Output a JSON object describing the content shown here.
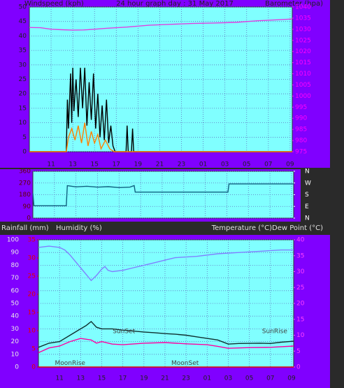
{
  "chart_data": [
    {
      "type": "line",
      "title": "24 hour graph day : 31 May 2017",
      "y_label": "Windspeed (kph)",
      "y2_label": "Barometer (hpa)",
      "xlim": [
        9,
        33.2
      ],
      "xticks": [
        11,
        13,
        15,
        17,
        19,
        21,
        23,
        {
          "value": 25,
          "label": "01"
        },
        {
          "value": 27,
          "label": "03"
        },
        {
          "value": 29,
          "label": "05"
        },
        {
          "value": 31,
          "label": "07"
        },
        {
          "value": 33,
          "label": "09"
        }
      ],
      "ylim": [
        0,
        50
      ],
      "yticks": [
        0,
        5,
        10,
        15,
        20,
        25,
        30,
        35,
        40,
        45,
        50
      ],
      "y2lim": [
        975,
        1040
      ],
      "y2ticks": [
        975,
        980,
        985,
        990,
        995,
        1000,
        1005,
        1010,
        1015,
        1020,
        1025,
        1030,
        1035,
        1040
      ],
      "grid": true,
      "series": [
        {
          "name": "Barometer",
          "color": "#e040e0",
          "axis": "y2",
          "x": [
            9,
            10,
            11,
            12,
            13,
            14,
            15,
            16,
            18,
            20,
            22,
            24,
            26,
            28,
            30,
            32,
            33.2
          ],
          "values": [
            1030.8,
            1030.7,
            1030,
            1029.8,
            1029.6,
            1029.7,
            1030,
            1030.4,
            1031,
            1031.8,
            1032.2,
            1032.6,
            1032.8,
            1033.1,
            1033.8,
            1034.3,
            1034.6
          ]
        },
        {
          "name": "Wind gust",
          "color": "#000000",
          "x": [
            9,
            12.4,
            12.5,
            12.6,
            12.8,
            12.9,
            13,
            13.1,
            13.3,
            13.5,
            13.7,
            13.9,
            14.1,
            14.3,
            14.5,
            14.7,
            14.9,
            15.1,
            15.3,
            15.5,
            15.7,
            15.9,
            16.1,
            16.3,
            16.5,
            16.7,
            16.9,
            17.9,
            18,
            18.1,
            18.4,
            18.5,
            18.6,
            33.2
          ],
          "values": [
            0,
            0,
            18,
            8,
            27,
            10,
            29,
            14,
            25,
            12,
            29,
            15,
            29,
            9,
            24,
            11,
            27,
            8,
            20,
            5,
            16,
            4,
            18,
            3,
            9,
            2,
            0,
            0,
            9,
            0,
            0,
            8,
            0,
            0
          ]
        },
        {
          "name": "Wind average",
          "color": "#ff8000",
          "x": [
            9,
            12.4,
            12.6,
            12.9,
            13.2,
            13.5,
            13.8,
            14.1,
            14.4,
            14.7,
            15,
            15.3,
            15.6,
            16,
            16.4,
            16.8,
            33.2
          ],
          "values": [
            0,
            0,
            5,
            8,
            4,
            9,
            3,
            10,
            2,
            7,
            3,
            6,
            1,
            4,
            1,
            0,
            0
          ]
        }
      ]
    },
    {
      "type": "line",
      "xlim": [
        9,
        33.2
      ],
      "ylim": [
        0,
        360
      ],
      "yticks": [
        0,
        90,
        180,
        270,
        360
      ],
      "y2lim": [
        0,
        360
      ],
      "y2ticks": [
        {
          "value": 0,
          "label": "N"
        },
        {
          "value": 90,
          "label": "E"
        },
        {
          "value": 180,
          "label": "S"
        },
        {
          "value": 270,
          "label": "W"
        },
        {
          "value": 360,
          "label": "N"
        }
      ],
      "grid": true,
      "series": [
        {
          "name": "Wind direction",
          "color": "#106080",
          "x": [
            9,
            9.1,
            12.1,
            12.2,
            13,
            14,
            15,
            16,
            17,
            18,
            18.4,
            18.5,
            27.1,
            27.2,
            33.2
          ],
          "values": [
            190,
            95,
            95,
            250,
            240,
            245,
            238,
            242,
            235,
            238,
            250,
            200,
            200,
            263,
            263
          ]
        }
      ]
    },
    {
      "type": "line",
      "y_label": "Humidity (%)",
      "y3_label": "Rainfall (mm)",
      "y2_label": "Temperature (°C)Dew Point (°C)",
      "xlim": [
        9,
        33.2
      ],
      "xticks": [
        11,
        13,
        15,
        17,
        19,
        21,
        23,
        {
          "value": 25,
          "label": "01"
        },
        {
          "value": 27,
          "label": "03"
        },
        {
          "value": 29,
          "label": "05"
        },
        {
          "value": 31,
          "label": "07"
        },
        {
          "value": 33,
          "label": "09"
        }
      ],
      "ylim": [
        0,
        100
      ],
      "yticks": [
        0,
        10,
        20,
        30,
        40,
        50,
        60,
        70,
        80,
        90,
        100
      ],
      "y3lim": [
        0,
        35
      ],
      "y3ticks": [
        0,
        5,
        10,
        15,
        20,
        25,
        30,
        35
      ],
      "y2lim": [
        0,
        40
      ],
      "y2ticks": [
        0,
        5,
        10,
        15,
        20,
        25,
        30,
        35,
        40
      ],
      "grid": true,
      "series": [
        {
          "name": "Humidity",
          "color": "#8080ff",
          "x": [
            9,
            10,
            11,
            11.5,
            12,
            13,
            13.8,
            14,
            14.5,
            15,
            15.3,
            15.6,
            16,
            17,
            18,
            19,
            20,
            21,
            22,
            24,
            26,
            28,
            30,
            32,
            33.2
          ],
          "values": [
            94,
            95,
            94,
            92,
            88,
            78,
            70,
            68,
            72,
            77,
            79,
            76,
            75,
            76,
            78,
            80,
            82,
            84,
            86,
            87,
            89,
            90,
            91,
            92,
            92
          ]
        },
        {
          "name": "Temperature",
          "color": "#103030",
          "axis": "y2",
          "x": [
            9,
            10,
            11,
            12,
            13,
            13.5,
            14,
            14.5,
            15,
            16,
            17,
            18,
            19,
            20,
            21,
            22,
            23,
            24,
            25,
            26,
            27,
            28,
            30,
            31,
            32,
            33.2
          ],
          "values": [
            6.2,
            7.5,
            8,
            10,
            12,
            13,
            14.3,
            12.5,
            12,
            12,
            11.6,
            11.3,
            11,
            10.8,
            10.5,
            10.3,
            10,
            9.5,
            9,
            8.5,
            7.2,
            7.4,
            7.5,
            7.4,
            7.8,
            8.1
          ]
        },
        {
          "name": "Dew Point",
          "color": "#ff00a0",
          "axis": "y2",
          "x": [
            9,
            10,
            11,
            12,
            13,
            14,
            14.5,
            15,
            16,
            17,
            19,
            21,
            23,
            25,
            26,
            27,
            29,
            31,
            33.2
          ],
          "values": [
            4.5,
            6,
            6.6,
            8,
            9,
            8.5,
            7.5,
            8,
            7.2,
            7,
            7.5,
            7.7,
            7.3,
            7,
            6.5,
            5.9,
            6.1,
            6.2,
            6.6
          ]
        },
        {
          "name": "Rainfall",
          "color": "#e00000",
          "axis": "y3",
          "x": [
            9,
            33.2
          ],
          "values": [
            0,
            0
          ]
        }
      ],
      "annotations": [
        {
          "text": "MoonRise",
          "x": 12,
          "y": 0.5
        },
        {
          "text": "SunSet",
          "x": 17.1,
          "y": 10.5
        },
        {
          "text": "MoonSet",
          "x": 22.9,
          "y": 0.5
        },
        {
          "text": "SunRise",
          "x": 31.4,
          "y": 10.5
        }
      ]
    }
  ]
}
